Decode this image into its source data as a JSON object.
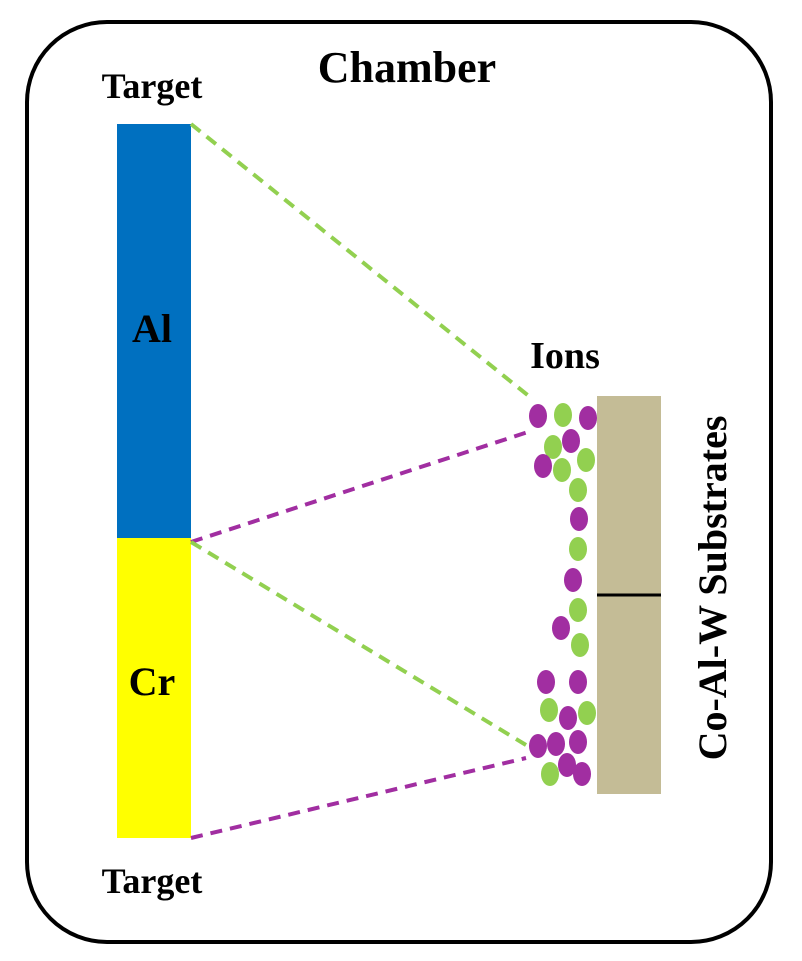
{
  "title": "Chamber",
  "top_target_label": "Target",
  "bottom_target_label": "Target",
  "ions_label": "Ions",
  "substrate_label": "Co-Al-W Substrates",
  "targets": [
    {
      "element": "Al",
      "color": "#0070c0"
    },
    {
      "element": "Cr",
      "color": "#ffff00"
    }
  ],
  "colors": {
    "al_ion": "#92d050",
    "cr_ion": "#a12ea1",
    "substrate": "#c4bc96",
    "frame": "#000000"
  },
  "ions": [
    {
      "species": "Cr"
    },
    {
      "species": "Al"
    },
    {
      "species": "Cr"
    },
    {
      "species": "Al"
    },
    {
      "species": "Cr"
    },
    {
      "species": "Cr"
    },
    {
      "species": "Al"
    },
    {
      "species": "Al"
    },
    {
      "species": "Al"
    },
    {
      "species": "Cr"
    },
    {
      "species": "Al"
    },
    {
      "species": "Cr"
    },
    {
      "species": "Al"
    },
    {
      "species": "Cr"
    },
    {
      "species": "Al"
    },
    {
      "species": "Cr"
    },
    {
      "species": "Cr"
    },
    {
      "species": "Al"
    },
    {
      "species": "Cr"
    },
    {
      "species": "Al"
    },
    {
      "species": "Cr"
    },
    {
      "species": "Cr"
    },
    {
      "species": "Cr"
    },
    {
      "species": "Cr"
    },
    {
      "species": "Al"
    },
    {
      "species": "Cr"
    },
    {
      "species": "Cr"
    }
  ]
}
